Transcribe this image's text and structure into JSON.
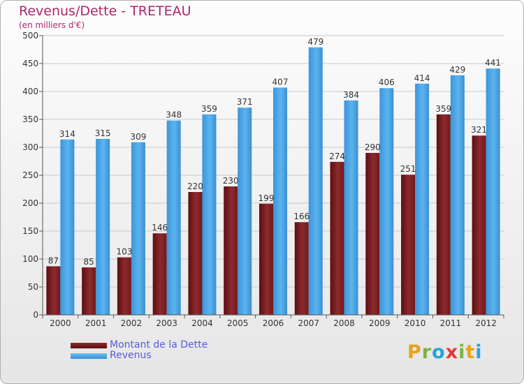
{
  "chart_data": {
    "type": "bar",
    "title": "Revenus/Dette - TRETEAU",
    "subtitle": "(en milliers d'€)",
    "xlabel": "",
    "ylabel": "",
    "ylim": [
      0,
      500
    ],
    "yticks": [
      0,
      50,
      100,
      150,
      200,
      250,
      300,
      350,
      400,
      450,
      500
    ],
    "categories": [
      "2000",
      "2001",
      "2002",
      "2003",
      "2004",
      "2005",
      "2006",
      "2007",
      "2008",
      "2009",
      "2010",
      "2011",
      "2012"
    ],
    "series": [
      {
        "name": "Montant de la Dette",
        "color": "#7a1a1e",
        "values": [
          87,
          85,
          103,
          146,
          220,
          230,
          199,
          166,
          274,
          290,
          251,
          359,
          321
        ]
      },
      {
        "name": "Revenus",
        "color": "#4da6e8",
        "values": [
          314,
          315,
          309,
          348,
          359,
          371,
          407,
          479,
          384,
          406,
          414,
          429,
          441
        ]
      }
    ],
    "legend_position": "bottom-left",
    "grid": true
  },
  "logo": {
    "letters": [
      "P",
      "r",
      "o",
      "x",
      "i",
      "t",
      "i"
    ],
    "colors": [
      "#e8a317",
      "#7cb342",
      "#29a3d8",
      "#e53935",
      "#7cb342",
      "#e8a317",
      "#29a3d8"
    ]
  }
}
